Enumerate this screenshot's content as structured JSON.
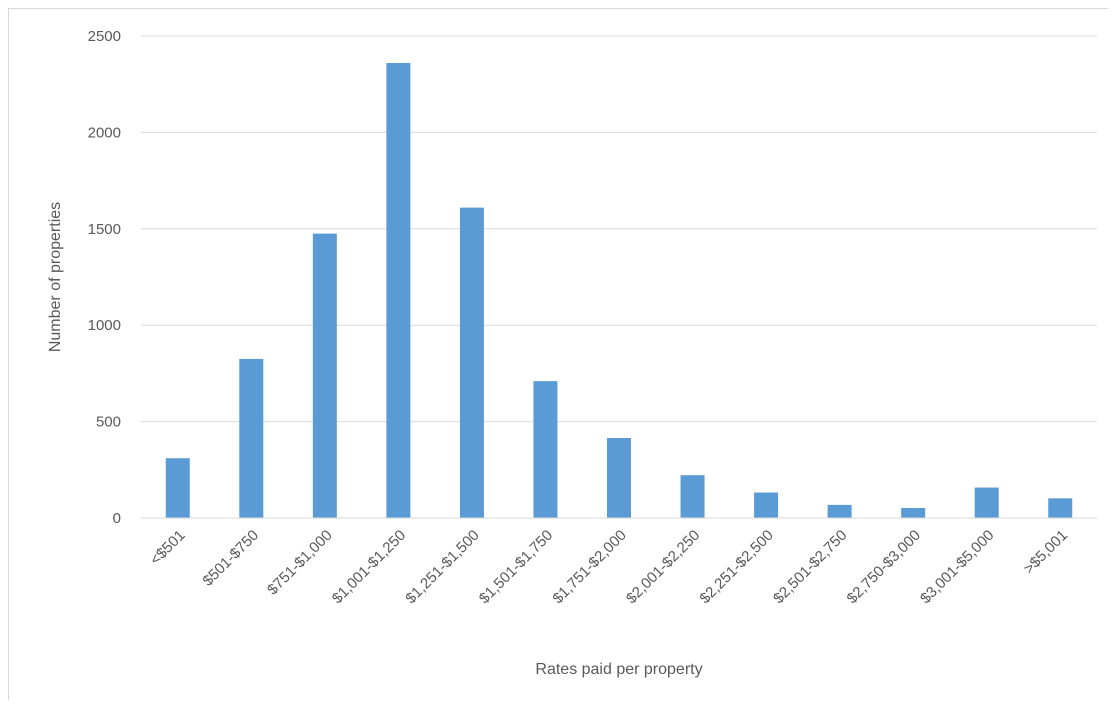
{
  "chart_data": {
    "type": "bar",
    "title": "",
    "xlabel": "Rates paid per property",
    "ylabel": "Number of properties",
    "ylim": [
      0,
      2500
    ],
    "yticks": [
      0,
      500,
      1000,
      1500,
      2000,
      2500
    ],
    "grid": true,
    "legend": "none",
    "bar_color": "#5b9bd5",
    "categories": [
      "<$501",
      "$501-$750",
      "$751-$1,000",
      "$1,001-$1,250",
      "$1,251-$1,500",
      "$1,501-$1,750",
      "$1,751-$2,000",
      "$2,001-$2,250",
      "$2,251-$2,500",
      "$2,501-$2,750",
      "$2,750-$3,000",
      "$3,001-$5,000",
      ">$5,001"
    ],
    "values": [
      310,
      825,
      1475,
      2360,
      1610,
      710,
      415,
      222,
      132,
      68,
      52,
      158,
      102
    ]
  }
}
